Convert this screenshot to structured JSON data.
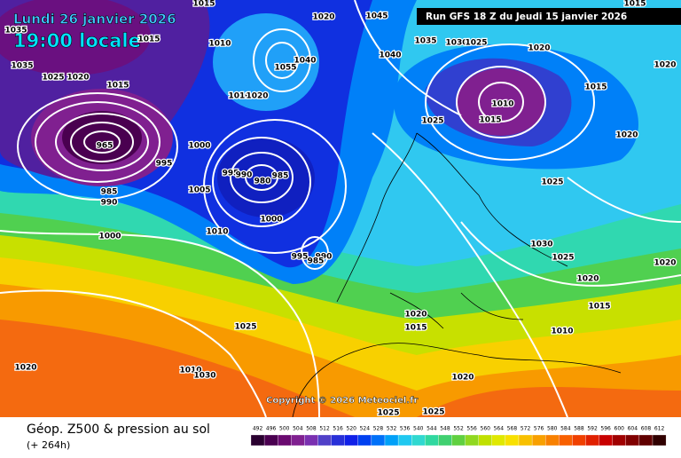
{
  "header": {
    "valid_date": "Lundi 26 janvier 2026",
    "valid_time": "19:00 locale",
    "run": "Run GFS 18 Z du Jeudi 15 janvier 2026"
  },
  "copyright": "Copyright © 2026 Meteociel.fr",
  "footer": {
    "title": "Géop. Z500 & pression au sol",
    "lead": "(+ 264h)"
  },
  "isobars": [
    "1015",
    "1035",
    "1015",
    "1010",
    "1035",
    "1025",
    "1020",
    "1015",
    "965",
    "995",
    "985",
    "990",
    "1000",
    "1005",
    "1000",
    "1010",
    "995",
    "990",
    "980",
    "985",
    "1000",
    "995",
    "990",
    "985",
    "1010",
    "1020",
    "1055",
    "1040",
    "1020",
    "1045",
    "1040",
    "1035",
    "1030",
    "1025",
    "1020",
    "1015",
    "1010",
    "1015",
    "1025",
    "1020",
    "1025",
    "1030",
    "1025",
    "1020",
    "1015",
    "1020",
    "1010",
    "1020",
    "1015",
    "1025",
    "1020",
    "1010",
    "1030",
    "1020",
    "1025",
    "1025",
    "1020",
    "1015"
  ],
  "legend": {
    "labels": [
      "492",
      "496",
      "500",
      "504",
      "508",
      "512",
      "516",
      "520",
      "524",
      "528",
      "532",
      "536",
      "540",
      "544",
      "548",
      "552",
      "556",
      "560",
      "564",
      "568",
      "572",
      "576",
      "580",
      "584",
      "588",
      "592",
      "596",
      "600",
      "604",
      "608",
      "612"
    ],
    "colors": [
      "#2a0030",
      "#4a0050",
      "#6a0a70",
      "#802090",
      "#7a30b0",
      "#5040c8",
      "#2830d8",
      "#1020e8",
      "#0040f0",
      "#0070f8",
      "#00a0f8",
      "#20c8f0",
      "#30d8d0",
      "#30d8a0",
      "#40d070",
      "#60d040",
      "#90d820",
      "#c0e000",
      "#e0e800",
      "#f8e000",
      "#f8c000",
      "#f8a000",
      "#f88000",
      "#f86000",
      "#f04000",
      "#e02000",
      "#c80000",
      "#a00000",
      "#800000",
      "#600000",
      "#300000"
    ]
  }
}
